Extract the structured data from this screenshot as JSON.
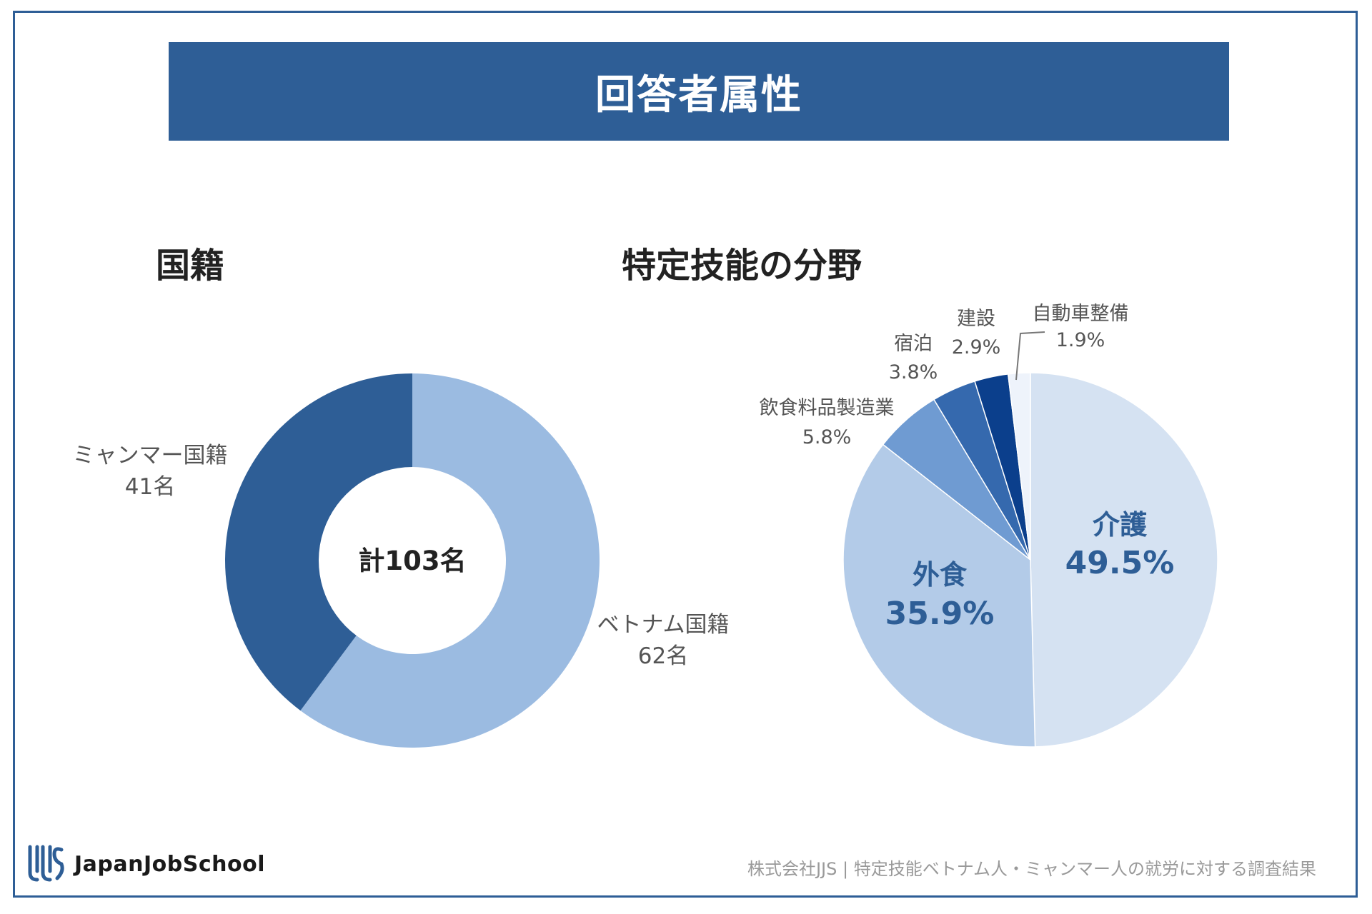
{
  "title": "回答者属性",
  "colors": {
    "brand": "#2e5e96",
    "myanmar": "#2e5e96",
    "vietnam": "#9bbbe1",
    "field_palette": [
      "#d5e2f2",
      "#b3cbe8",
      "#6f9bd2",
      "#3569ae",
      "#0b3f8c",
      "#eef3fb"
    ]
  },
  "chart_data": [
    {
      "type": "pie",
      "variant": "donut",
      "title": "国籍",
      "center_label": "計103名",
      "slices": [
        {
          "name": "ミャンマー国籍",
          "value": 41,
          "value_label": "41名"
        },
        {
          "name": "ベトナム国籍",
          "value": 62,
          "value_label": "62名"
        }
      ]
    },
    {
      "type": "pie",
      "title": "特定技能の分野",
      "slices": [
        {
          "name": "介護",
          "value": 49.5,
          "value_label": "49.5%"
        },
        {
          "name": "外食",
          "value": 35.9,
          "value_label": "35.9%"
        },
        {
          "name": "飲食料品製造業",
          "value": 5.8,
          "value_label": "5.8%"
        },
        {
          "name": "宿泊",
          "value": 3.8,
          "value_label": "3.8%"
        },
        {
          "name": "建設",
          "value": 2.9,
          "value_label": "2.9%"
        },
        {
          "name": "自動車整備",
          "value": 1.9,
          "value_label": "1.9%"
        }
      ]
    }
  ],
  "footer": {
    "logo_text": "JapanJobSchool",
    "logo_icon": "jjs-logo-icon",
    "note": "株式会社JJS | 特定技能ベトナム人・ミャンマー人の就労に対する調査結果"
  }
}
